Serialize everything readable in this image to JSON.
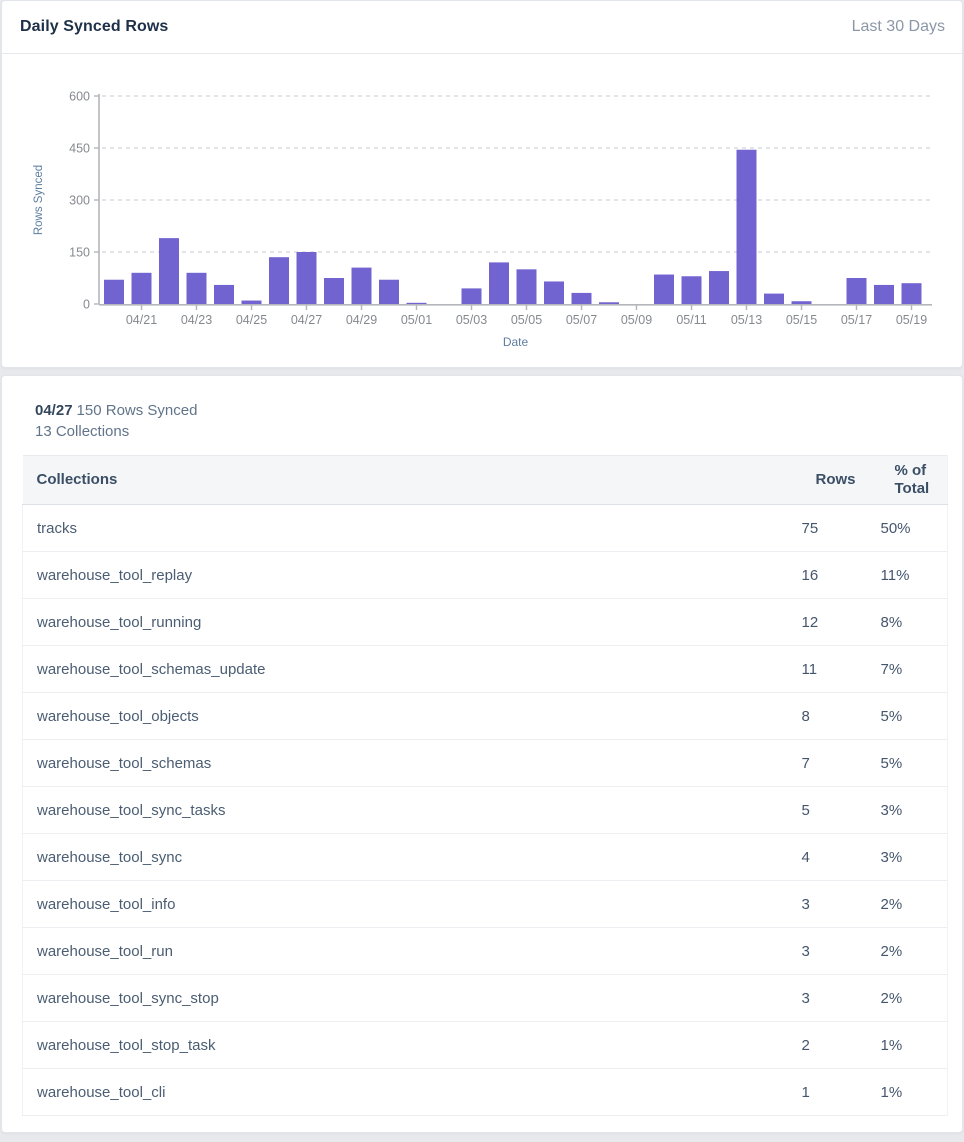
{
  "header": {
    "title": "Daily Synced Rows",
    "range_label": "Last 30 Days"
  },
  "chart_data": {
    "type": "bar",
    "title": "Daily Synced Rows",
    "xlabel": "Date",
    "ylabel": "Rows Synced",
    "ylim": [
      0,
      600
    ],
    "yticks": [
      0,
      150,
      300,
      450,
      600
    ],
    "grid": "horizontal-dashed",
    "legend": "none",
    "bar_color": "#7164d1",
    "axis_color": "#b3b6bb",
    "tick_label_color": "#85898f",
    "axis_title_color": "#5d7da0",
    "x": [
      "04/20",
      "04/21",
      "04/22",
      "04/23",
      "04/24",
      "04/25",
      "04/26",
      "04/27",
      "04/28",
      "04/29",
      "04/30",
      "05/01",
      "05/02",
      "05/03",
      "05/04",
      "05/05",
      "05/06",
      "05/07",
      "05/08",
      "05/09",
      "05/10",
      "05/11",
      "05/12",
      "05/13",
      "05/14",
      "05/15",
      "05/16",
      "05/17",
      "05/18",
      "05/19"
    ],
    "values": [
      70,
      90,
      190,
      90,
      55,
      10,
      135,
      150,
      75,
      105,
      70,
      3,
      0,
      45,
      120,
      100,
      65,
      32,
      5,
      0,
      85,
      80,
      95,
      445,
      30,
      8,
      0,
      75,
      55,
      60
    ],
    "x_tick_labels": [
      "04/21",
      "04/23",
      "04/25",
      "04/27",
      "04/29",
      "05/01",
      "05/03",
      "05/05",
      "05/07",
      "05/09",
      "05/11",
      "05/13",
      "05/15",
      "05/17",
      "05/19"
    ],
    "label_every": 2,
    "label_start_index": 1
  },
  "detail": {
    "date": "04/27",
    "rows_synced_label": "150 Rows Synced",
    "collections_label": "13 Collections"
  },
  "table": {
    "columns": [
      "Collections",
      "Rows",
      "% of Total"
    ],
    "rows": [
      {
        "name": "tracks",
        "rows": "75",
        "pct": "50%"
      },
      {
        "name": "warehouse_tool_replay",
        "rows": "16",
        "pct": "11%"
      },
      {
        "name": "warehouse_tool_running",
        "rows": "12",
        "pct": "8%"
      },
      {
        "name": "warehouse_tool_schemas_update",
        "rows": "11",
        "pct": "7%"
      },
      {
        "name": "warehouse_tool_objects",
        "rows": "8",
        "pct": "5%"
      },
      {
        "name": "warehouse_tool_schemas",
        "rows": "7",
        "pct": "5%"
      },
      {
        "name": "warehouse_tool_sync_tasks",
        "rows": "5",
        "pct": "3%"
      },
      {
        "name": "warehouse_tool_sync",
        "rows": "4",
        "pct": "3%"
      },
      {
        "name": "warehouse_tool_info",
        "rows": "3",
        "pct": "2%"
      },
      {
        "name": "warehouse_tool_run",
        "rows": "3",
        "pct": "2%"
      },
      {
        "name": "warehouse_tool_sync_stop",
        "rows": "3",
        "pct": "2%"
      },
      {
        "name": "warehouse_tool_stop_task",
        "rows": "2",
        "pct": "1%"
      },
      {
        "name": "warehouse_tool_cli",
        "rows": "1",
        "pct": "1%"
      }
    ]
  }
}
